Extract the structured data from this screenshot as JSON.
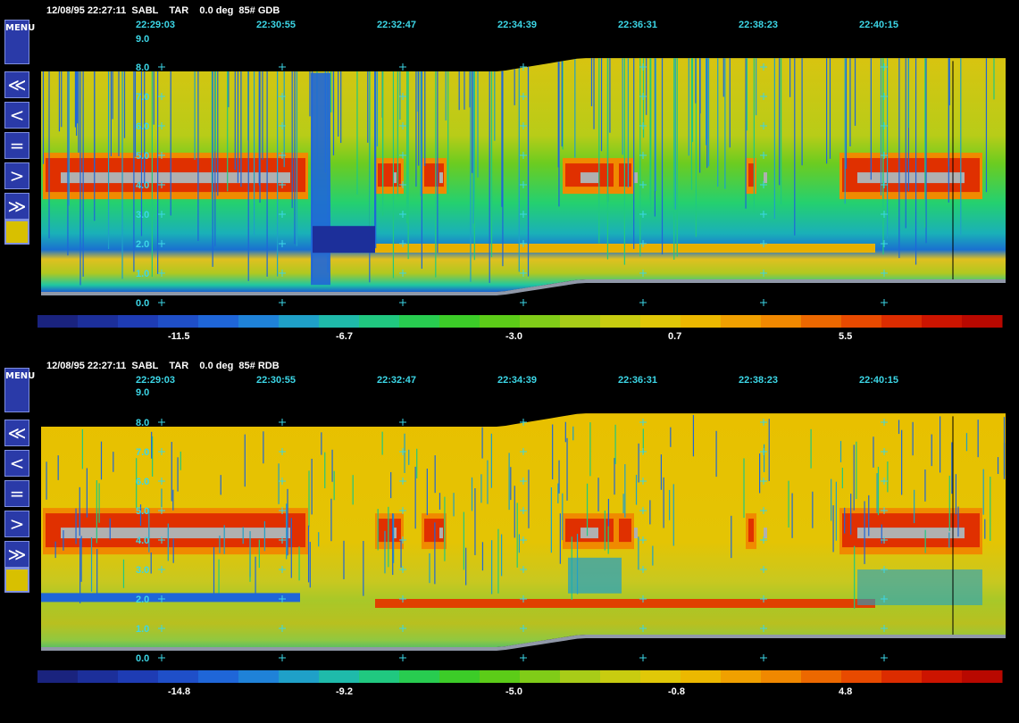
{
  "menu_label": "MENU",
  "nav_buttons": [
    "≪",
    "<",
    "=",
    ">",
    "≫"
  ],
  "panels": [
    {
      "header": "12/08/95 22:27:11  SABL    TAR    0.0 deg  85# GDB",
      "times": [
        "22:29:03",
        "22:30:55",
        "22:32:47",
        "22:34:39",
        "22:36:31",
        "22:38:23",
        "22:40:15"
      ],
      "ymax_label": "9.0",
      "yticks": [
        "0.0",
        "1.0",
        "2.0",
        "3.0",
        "4.0",
        "5.0",
        "6.0",
        "7.0",
        "8.0"
      ],
      "colorbar_labels": [
        "-11.5",
        "-6.7",
        "-3.0",
        "0.7",
        "5.5"
      ]
    },
    {
      "header": "12/08/95 22:27:11  SABL    TAR    0.0 deg  85# RDB",
      "times": [
        "22:29:03",
        "22:30:55",
        "22:32:47",
        "22:34:39",
        "22:36:31",
        "22:38:23",
        "22:40:15"
      ],
      "ymax_label": "9.0",
      "yticks": [
        "0.0",
        "1.0",
        "2.0",
        "3.0",
        "4.0",
        "5.0",
        "6.0",
        "7.0",
        "8.0"
      ],
      "colorbar_labels": [
        "-14.8",
        "-9.2",
        "-5.0",
        "-0.8",
        "4.8"
      ]
    }
  ],
  "colors": {
    "colorbar": [
      "#1a237e",
      "#1c2f9a",
      "#1e3cb4",
      "#1f4fc8",
      "#1f66d8",
      "#1f82d8",
      "#1fa0c8",
      "#1fbaaa",
      "#20c880",
      "#28cc50",
      "#3ccc28",
      "#5ccc18",
      "#80cc18",
      "#a8cc18",
      "#c8cc10",
      "#e0c808",
      "#ecb800",
      "#f0a000",
      "#f08800",
      "#ec6800",
      "#e84a00",
      "#dc2c00",
      "#cc1400",
      "#b80800"
    ],
    "text_cyan": "#3cd6e6",
    "button_blue": "#2a3aa8",
    "swatch": "#d8c000"
  },
  "chart_data": [
    {
      "type": "heatmap",
      "title": "12/08/95 22:27:11  SABL    TAR    0.0 deg  85# GDB",
      "x": [
        "22:29:03",
        "22:30:55",
        "22:32:47",
        "22:34:39",
        "22:36:31",
        "22:38:23",
        "22:40:15"
      ],
      "ylim": [
        0,
        9
      ],
      "colorbar": [
        -11.5,
        -6.7,
        -3.0,
        0.7,
        5.5
      ]
    },
    {
      "type": "heatmap",
      "title": "12/08/95 22:27:11  SABL    TAR    0.0 deg  85# RDB",
      "x": [
        "22:29:03",
        "22:30:55",
        "22:32:47",
        "22:34:39",
        "22:36:31",
        "22:38:23",
        "22:40:15"
      ],
      "ylim": [
        0,
        9
      ],
      "colorbar": [
        -14.8,
        -9.2,
        -5.0,
        -0.8,
        4.8
      ]
    }
  ]
}
